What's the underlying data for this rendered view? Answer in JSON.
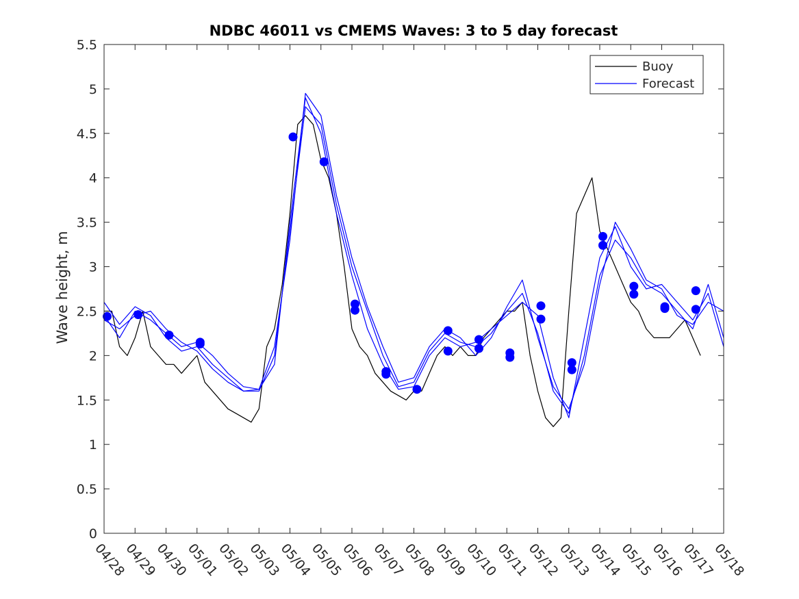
{
  "chart_data": {
    "type": "line",
    "title": "NDBC 46011 vs CMEMS Waves: 3 to 5 day forecast",
    "xlabel": "",
    "ylabel": "Wave height, m",
    "xlim": [
      "04/28",
      "05/18"
    ],
    "ylim": [
      0,
      5.5
    ],
    "x_tick_labels": [
      "04/28",
      "04/29",
      "04/30",
      "05/01",
      "05/02",
      "05/03",
      "05/04",
      "05/05",
      "05/06",
      "05/07",
      "05/08",
      "05/09",
      "05/10",
      "05/11",
      "05/12",
      "05/13",
      "05/14",
      "05/15",
      "05/16",
      "05/17",
      "05/18"
    ],
    "y_ticks": [
      0,
      0.5,
      1,
      1.5,
      2,
      2.5,
      3,
      3.5,
      4,
      4.5,
      5,
      5.5
    ],
    "y_tick_labels": [
      "0",
      "0.5",
      "1",
      "1.5",
      "2",
      "2.5",
      "3",
      "3.5",
      "4",
      "4.5",
      "5",
      "5.5"
    ],
    "grid": false,
    "legend": {
      "position": "top-right",
      "entries": [
        {
          "label": "Buoy",
          "color": "#000000"
        },
        {
          "label": "Forecast",
          "color": "#0000ff"
        }
      ]
    },
    "x_unit_note": "x values are days after 04/28",
    "series": [
      {
        "name": "Buoy",
        "color": "#000000",
        "x": [
          0,
          0.25,
          0.5,
          0.75,
          1,
          1.25,
          1.5,
          1.75,
          2,
          2.25,
          2.5,
          2.75,
          3,
          3.25,
          3.5,
          3.75,
          4,
          4.25,
          4.5,
          4.75,
          5,
          5.25,
          5.5,
          5.75,
          6,
          6.25,
          6.5,
          6.75,
          7,
          7.25,
          7.5,
          7.75,
          8,
          8.25,
          8.5,
          8.75,
          9,
          9.25,
          9.5,
          9.75,
          10,
          10.25,
          10.5,
          10.75,
          11,
          11.25,
          11.5,
          11.75,
          12,
          12.25,
          12.5,
          12.75,
          13,
          13.25,
          13.5,
          13.75,
          14,
          14.25,
          14.5,
          14.75,
          15,
          15.25,
          15.5,
          15.75,
          16,
          16.25,
          16.5,
          16.75,
          17,
          17.25,
          17.5,
          17.75,
          18,
          18.25,
          18.5,
          18.75,
          19,
          19.25
        ],
        "values": [
          2.5,
          2.5,
          2.1,
          2.0,
          2.2,
          2.5,
          2.1,
          2.0,
          1.9,
          1.9,
          1.8,
          1.9,
          2.0,
          1.7,
          1.6,
          1.5,
          1.4,
          1.35,
          1.3,
          1.25,
          1.4,
          2.1,
          2.3,
          2.8,
          3.6,
          4.6,
          4.7,
          4.6,
          4.2,
          4.0,
          3.6,
          3.0,
          2.3,
          2.1,
          2.0,
          1.8,
          1.7,
          1.6,
          1.55,
          1.5,
          1.6,
          1.6,
          1.8,
          2.0,
          2.1,
          2.0,
          2.1,
          2.0,
          2.0,
          2.2,
          2.3,
          2.4,
          2.5,
          2.5,
          2.6,
          2.0,
          1.6,
          1.3,
          1.2,
          1.3,
          2.5,
          3.6,
          3.8,
          4.0,
          3.4,
          3.2,
          3.0,
          2.8,
          2.6,
          2.5,
          2.3,
          2.2,
          2.2,
          2.2,
          2.3,
          2.4,
          2.2,
          2.0
        ]
      },
      {
        "name": "Forecast",
        "color": "#0000ff",
        "x": [
          0,
          0.5,
          1,
          1.5,
          2,
          2.5,
          3,
          3.5,
          4,
          4.5,
          5,
          5.5,
          6,
          6.5,
          7,
          7.5,
          8,
          8.5,
          9,
          9.5,
          10,
          10.5,
          11,
          11.5,
          12,
          12.5,
          13,
          13.5,
          14,
          14.5,
          15,
          15.5,
          16,
          16.5,
          17,
          17.5,
          18,
          18.5,
          19,
          19.5,
          20
        ],
        "values": [
          2.45,
          2.2,
          2.5,
          2.4,
          2.25,
          2.1,
          2.15,
          2.0,
          1.8,
          1.65,
          1.62,
          1.9,
          3.5,
          4.9,
          4.5,
          3.6,
          2.9,
          2.3,
          1.9,
          1.62,
          1.65,
          2.0,
          2.2,
          2.1,
          2.15,
          2.3,
          2.45,
          2.6,
          2.45,
          1.75,
          1.3,
          2.2,
          3.1,
          3.45,
          3.0,
          2.75,
          2.8,
          2.6,
          2.4,
          2.7,
          2.1
        ]
      },
      {
        "name": "Forecast",
        "color": "#0000ff",
        "x": [
          0,
          0.5,
          1,
          1.5,
          2,
          2.5,
          3,
          3.5,
          4,
          4.5,
          5,
          5.5,
          6,
          6.5,
          7,
          7.5,
          8,
          8.5,
          9,
          9.5,
          10,
          10.5,
          11,
          11.5,
          12,
          12.5,
          13,
          13.5,
          14,
          14.5,
          15,
          15.5,
          16,
          16.5,
          17,
          17.5,
          18,
          18.5,
          19,
          19.5,
          20
        ],
        "values": [
          2.6,
          2.35,
          2.55,
          2.45,
          2.2,
          2.05,
          2.1,
          1.9,
          1.75,
          1.6,
          1.6,
          2.0,
          3.4,
          4.8,
          4.6,
          3.7,
          3.0,
          2.5,
          2.0,
          1.65,
          1.7,
          2.05,
          2.25,
          2.15,
          2.1,
          2.25,
          2.5,
          2.7,
          2.25,
          1.6,
          1.35,
          2.0,
          2.9,
          3.3,
          3.1,
          2.8,
          2.7,
          2.5,
          2.3,
          2.8,
          2.2
        ]
      },
      {
        "name": "Forecast",
        "color": "#0000ff",
        "x": [
          0,
          0.5,
          1,
          1.5,
          2,
          2.5,
          3,
          3.5,
          4,
          4.5,
          5,
          5.5,
          6,
          6.5,
          7,
          7.5,
          8,
          8.5,
          9,
          9.5,
          10,
          10.5,
          11,
          11.5,
          12,
          12.5,
          13,
          13.5,
          14,
          14.5,
          15,
          15.5,
          16,
          16.5,
          17,
          17.5,
          18,
          18.5,
          19,
          19.5,
          20
        ],
        "values": [
          2.4,
          2.3,
          2.45,
          2.5,
          2.3,
          2.15,
          2.05,
          1.85,
          1.7,
          1.6,
          1.62,
          2.1,
          3.3,
          4.95,
          4.7,
          3.8,
          3.1,
          2.55,
          2.1,
          1.7,
          1.75,
          2.1,
          2.3,
          2.2,
          2.0,
          2.2,
          2.55,
          2.85,
          2.2,
          1.65,
          1.4,
          1.9,
          2.8,
          3.5,
          3.2,
          2.85,
          2.75,
          2.45,
          2.35,
          2.6,
          2.5
        ]
      }
    ],
    "markers": {
      "name": "Forecast",
      "color": "#0000ff",
      "points": [
        {
          "x": 0.1,
          "y": 2.44
        },
        {
          "x": 1.1,
          "y": 2.46
        },
        {
          "x": 2.1,
          "y": 2.23
        },
        {
          "x": 3.1,
          "y": 2.15
        },
        {
          "x": 3.1,
          "y": 2.13
        },
        {
          "x": 6.1,
          "y": 4.46
        },
        {
          "x": 7.1,
          "y": 4.18
        },
        {
          "x": 8.1,
          "y": 2.58
        },
        {
          "x": 8.1,
          "y": 2.51
        },
        {
          "x": 9.1,
          "y": 1.82
        },
        {
          "x": 9.1,
          "y": 1.79
        },
        {
          "x": 10.1,
          "y": 1.62
        },
        {
          "x": 11.1,
          "y": 2.28
        },
        {
          "x": 11.1,
          "y": 2.05
        },
        {
          "x": 12.1,
          "y": 2.18
        },
        {
          "x": 12.1,
          "y": 2.08
        },
        {
          "x": 13.1,
          "y": 2.03
        },
        {
          "x": 13.1,
          "y": 1.98
        },
        {
          "x": 14.1,
          "y": 2.56
        },
        {
          "x": 14.1,
          "y": 2.41
        },
        {
          "x": 15.1,
          "y": 1.92
        },
        {
          "x": 15.1,
          "y": 1.84
        },
        {
          "x": 16.1,
          "y": 3.34
        },
        {
          "x": 16.1,
          "y": 3.24
        },
        {
          "x": 17.1,
          "y": 2.78
        },
        {
          "x": 17.1,
          "y": 2.69
        },
        {
          "x": 18.1,
          "y": 2.55
        },
        {
          "x": 18.1,
          "y": 2.53
        },
        {
          "x": 19.1,
          "y": 2.73
        },
        {
          "x": 19.1,
          "y": 2.52
        }
      ]
    }
  }
}
